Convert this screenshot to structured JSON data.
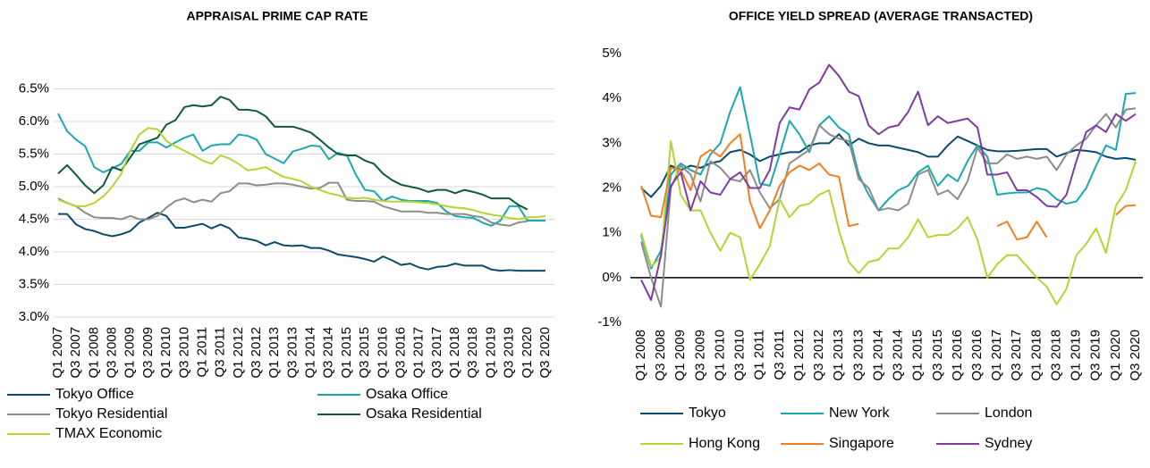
{
  "chart_data": [
    {
      "type": "line",
      "title": "APPRAISAL PRIME CAP RATE",
      "categories": [
        "Q1 2007",
        null,
        "Q3 2007",
        null,
        "Q1 2008",
        null,
        "Q3 2008",
        null,
        "Q1 2009",
        null,
        "Q3 2009",
        null,
        "Q1 2010",
        null,
        "Q3 2010",
        null,
        "Q1 2011",
        null,
        "Q3 2011",
        null,
        "Q1 2012",
        null,
        "Q3 2012",
        null,
        "Q1 2013",
        null,
        "Q3 2013",
        null,
        "Q1 2014",
        null,
        "Q3 2014",
        null,
        "Q1 2015",
        null,
        "Q3 2015",
        null,
        "Q1 2016",
        null,
        "Q3 2016",
        null,
        "Q1 2017",
        null,
        "Q3 2017",
        null,
        "Q1 2018",
        null,
        "Q3 2018",
        null,
        "Q1 2019",
        null,
        "Q3 2019",
        null,
        "Q1 2020",
        null,
        "Q3 2020"
      ],
      "series": [
        {
          "name": "Tokyo Office",
          "color": "#0b4a6e",
          "values": [
            4.58,
            4.58,
            4.42,
            4.35,
            4.32,
            4.27,
            4.24,
            4.27,
            4.32,
            4.45,
            4.52,
            4.6,
            4.55,
            4.37,
            4.37,
            4.4,
            4.43,
            4.36,
            4.42,
            4.36,
            4.22,
            4.2,
            4.17,
            4.1,
            4.15,
            4.1,
            4.09,
            4.1,
            4.06,
            4.06,
            4.02,
            3.96,
            3.94,
            3.92,
            3.89,
            3.85,
            3.93,
            3.87,
            3.8,
            3.82,
            3.76,
            3.73,
            3.77,
            3.78,
            3.82,
            3.79,
            3.79,
            3.79,
            3.73,
            3.71,
            3.72,
            3.71,
            3.71,
            3.71,
            3.71
          ]
        },
        {
          "name": "Osaka Office",
          "color": "#1aa8b0",
          "values": [
            6.12,
            5.85,
            5.72,
            5.62,
            5.3,
            5.22,
            5.28,
            5.35,
            5.55,
            5.55,
            5.68,
            5.68,
            5.6,
            5.68,
            5.75,
            5.8,
            5.55,
            5.63,
            5.65,
            5.65,
            5.8,
            5.78,
            5.72,
            5.5,
            5.43,
            5.36,
            5.54,
            5.58,
            5.63,
            5.62,
            5.42,
            5.52,
            5.48,
            5.18,
            4.95,
            4.93,
            4.78,
            4.85,
            4.8,
            4.78,
            4.78,
            4.78,
            4.75,
            4.62,
            4.55,
            4.53,
            4.52,
            4.45,
            4.4,
            4.48,
            4.7,
            4.7,
            4.48,
            4.48,
            4.48
          ]
        },
        {
          "name": "Tokyo Residential",
          "color": "#8c8c8c",
          "values": [
            4.82,
            4.75,
            4.7,
            4.6,
            4.53,
            4.52,
            4.52,
            4.5,
            4.55,
            4.5,
            4.5,
            4.55,
            4.68,
            4.78,
            4.82,
            4.76,
            4.8,
            4.77,
            4.9,
            4.93,
            5.05,
            5.05,
            5.02,
            5.03,
            5.05,
            5.05,
            5.03,
            5.0,
            4.97,
            4.98,
            5.06,
            5.06,
            4.8,
            4.78,
            4.78,
            4.77,
            4.7,
            4.66,
            4.62,
            4.62,
            4.62,
            4.6,
            4.6,
            4.58,
            4.58,
            4.58,
            4.55,
            4.53,
            4.45,
            4.42,
            4.4,
            4.45,
            4.47,
            null,
            null
          ]
        },
        {
          "name": "Osaka Residential",
          "color": "#0f5a3a",
          "values": [
            5.2,
            5.33,
            5.18,
            5.02,
            4.9,
            5.02,
            5.3,
            5.25,
            5.45,
            5.65,
            5.7,
            5.75,
            5.95,
            6.02,
            6.22,
            6.25,
            6.23,
            6.25,
            6.38,
            6.33,
            6.18,
            6.18,
            6.16,
            6.08,
            5.92,
            5.92,
            5.92,
            5.88,
            5.83,
            5.72,
            5.6,
            5.5,
            5.48,
            5.48,
            5.4,
            5.35,
            5.2,
            5.1,
            5.03,
            5.0,
            4.97,
            4.92,
            4.95,
            4.95,
            4.9,
            4.95,
            4.92,
            4.88,
            4.82,
            4.82,
            4.82,
            4.72,
            4.65,
            null,
            null
          ]
        },
        {
          "name": "TMAX Economic",
          "color": "#b5d334",
          "values": [
            4.8,
            4.75,
            4.7,
            4.7,
            4.75,
            4.85,
            5.0,
            5.2,
            5.55,
            5.8,
            5.9,
            5.88,
            5.7,
            5.62,
            5.55,
            5.48,
            5.4,
            5.35,
            5.48,
            5.43,
            5.35,
            5.25,
            5.27,
            5.3,
            5.22,
            5.15,
            5.12,
            5.08,
            5.0,
            4.95,
            4.9,
            4.87,
            4.83,
            4.82,
            4.83,
            4.8,
            4.78,
            4.77,
            4.77,
            4.77,
            4.76,
            4.75,
            4.73,
            4.7,
            4.68,
            4.67,
            4.64,
            4.6,
            4.57,
            4.55,
            4.52,
            4.5,
            4.53,
            4.53,
            4.55
          ]
        }
      ],
      "ylim": [
        3.0,
        7.0
      ],
      "yticks": [
        {
          "value": 3.0,
          "label": "3.0%"
        },
        {
          "value": 3.5,
          "label": "3.5%"
        },
        {
          "value": 4.0,
          "label": "4.0%"
        },
        {
          "value": 4.5,
          "label": "4.5%"
        },
        {
          "value": 5.0,
          "label": "5.0%"
        },
        {
          "value": 5.5,
          "label": "5.5%"
        },
        {
          "value": 6.0,
          "label": "6.0%"
        },
        {
          "value": 6.5,
          "label": "6.5%"
        }
      ],
      "grid": true,
      "zero_line": false,
      "legend": "bottom"
    },
    {
      "type": "line",
      "title": "OFFICE YIELD SPREAD (AVERAGE TRANSACTED)",
      "categories": [
        "Q1 2008",
        null,
        "Q3 2008",
        null,
        "Q1 2009",
        null,
        "Q3 2009",
        null,
        "Q1 2010",
        null,
        "Q3 2010",
        null,
        "Q1 2011",
        null,
        "Q3 2011",
        null,
        "Q1 2012",
        null,
        "Q3 2012",
        null,
        "Q1 2013",
        null,
        "Q3 2013",
        null,
        "Q1 2014",
        null,
        "Q3 2014",
        null,
        "Q1 2015",
        null,
        "Q3 2015",
        null,
        "Q1 2016",
        null,
        "Q3 2016",
        null,
        "Q1 2017",
        null,
        "Q3 2017",
        null,
        "Q1 2018",
        null,
        "Q3 2018",
        null,
        "Q1 2019",
        null,
        "Q3 2019",
        null,
        "Q1 2020",
        null,
        "Q3 2020"
      ],
      "series": [
        {
          "name": "Tokyo",
          "color": "#0b4a6e",
          "values": [
            2.0,
            1.8,
            2.05,
            2.5,
            2.4,
            2.5,
            2.45,
            2.55,
            2.6,
            2.8,
            2.85,
            2.75,
            2.6,
            2.7,
            2.75,
            2.8,
            2.8,
            2.95,
            3.0,
            3.0,
            3.2,
            2.95,
            3.1,
            3.0,
            2.95,
            2.95,
            2.9,
            2.85,
            2.8,
            2.7,
            2.7,
            2.95,
            3.15,
            3.05,
            2.95,
            2.85,
            2.82,
            2.82,
            2.83,
            2.85,
            2.87,
            2.87,
            2.7,
            2.78,
            2.85,
            2.83,
            2.8,
            2.7,
            2.65,
            2.67,
            2.63
          ]
        },
        {
          "name": "New York",
          "color": "#1aa8b0",
          "values": [
            0.95,
            0.2,
            0.6,
            2.3,
            2.55,
            2.4,
            2.3,
            2.75,
            3.0,
            3.7,
            4.25,
            3.2,
            2.1,
            2.05,
            2.75,
            3.5,
            3.2,
            2.8,
            3.4,
            3.6,
            3.35,
            3.2,
            2.3,
            1.85,
            1.5,
            1.75,
            1.95,
            2.05,
            2.35,
            2.5,
            2.05,
            2.3,
            2.15,
            2.6,
            2.95,
            2.7,
            1.85,
            1.88,
            1.9,
            1.9,
            2.0,
            1.95,
            1.75,
            1.65,
            1.7,
            2.0,
            2.5,
            2.95,
            2.85,
            4.1,
            4.12
          ]
        },
        {
          "name": "London",
          "color": "#8c8c8c",
          "values": [
            0.8,
            0.0,
            -0.65,
            2.0,
            2.5,
            2.3,
            1.7,
            2.6,
            2.45,
            2.2,
            2.15,
            2.4,
            1.9,
            1.55,
            1.75,
            2.55,
            2.7,
            2.85,
            3.4,
            3.2,
            3.1,
            3.05,
            2.2,
            2.0,
            1.5,
            1.55,
            1.5,
            1.65,
            2.3,
            2.4,
            1.85,
            1.95,
            1.75,
            2.15,
            2.9,
            2.55,
            2.55,
            2.75,
            2.65,
            2.7,
            2.65,
            2.7,
            2.4,
            2.75,
            2.95,
            3.1,
            3.4,
            3.65,
            3.35,
            3.75,
            3.78
          ]
        },
        {
          "name": "Hong Kong",
          "color": "#b5d334",
          "values": [
            1.0,
            0.25,
            0.45,
            3.05,
            1.85,
            1.5,
            1.5,
            1.0,
            0.6,
            1.0,
            0.9,
            -0.05,
            0.3,
            0.7,
            1.75,
            1.35,
            1.6,
            1.65,
            1.85,
            1.95,
            1.05,
            0.35,
            0.1,
            0.35,
            0.4,
            0.65,
            0.65,
            0.9,
            1.3,
            0.9,
            0.95,
            0.95,
            1.1,
            1.35,
            0.85,
            0.0,
            0.3,
            0.5,
            0.5,
            0.25,
            0.0,
            -0.2,
            -0.6,
            -0.25,
            0.5,
            0.75,
            1.1,
            0.55,
            1.6,
            1.95,
            2.6
          ]
        },
        {
          "name": "Singapore",
          "color": "#f07f20",
          "values": [
            2.05,
            1.38,
            1.35,
            2.45,
            2.4,
            1.95,
            2.7,
            2.85,
            2.7,
            3.0,
            3.2,
            1.7,
            1.1,
            1.5,
            2.05,
            2.35,
            2.5,
            2.4,
            2.55,
            2.3,
            2.25,
            1.15,
            1.2,
            null,
            null,
            null,
            null,
            null,
            null,
            null,
            null,
            null,
            null,
            null,
            null,
            null,
            1.15,
            1.25,
            0.85,
            0.9,
            1.25,
            0.9,
            null,
            null,
            null,
            null,
            null,
            null,
            1.4,
            1.6,
            1.62
          ]
        },
        {
          "name": "Sydney",
          "color": "#7d3ca0",
          "values": [
            -0.05,
            -0.5,
            0.5,
            2.05,
            2.35,
            1.5,
            2.15,
            1.9,
            1.85,
            2.2,
            2.35,
            2.0,
            2.0,
            2.4,
            3.45,
            3.8,
            3.75,
            4.2,
            4.35,
            4.75,
            4.5,
            4.15,
            4.05,
            3.4,
            3.2,
            3.35,
            3.4,
            3.7,
            4.15,
            3.4,
            3.6,
            3.45,
            3.5,
            3.55,
            3.35,
            2.3,
            2.3,
            2.35,
            1.95,
            1.95,
            1.8,
            1.6,
            1.58,
            1.85,
            2.6,
            3.25,
            3.4,
            3.25,
            3.65,
            3.5,
            3.65
          ]
        }
      ],
      "ylim": [
        -1,
        5
      ],
      "yticks": [
        {
          "value": -1,
          "label": "-1%"
        },
        {
          "value": 0,
          "label": "0%"
        },
        {
          "value": 1,
          "label": "1%"
        },
        {
          "value": 2,
          "label": "2%"
        },
        {
          "value": 3,
          "label": "3%"
        },
        {
          "value": 4,
          "label": "4%"
        },
        {
          "value": 5,
          "label": "5%"
        }
      ],
      "grid": false,
      "zero_line": true,
      "legend": "bottom"
    }
  ]
}
